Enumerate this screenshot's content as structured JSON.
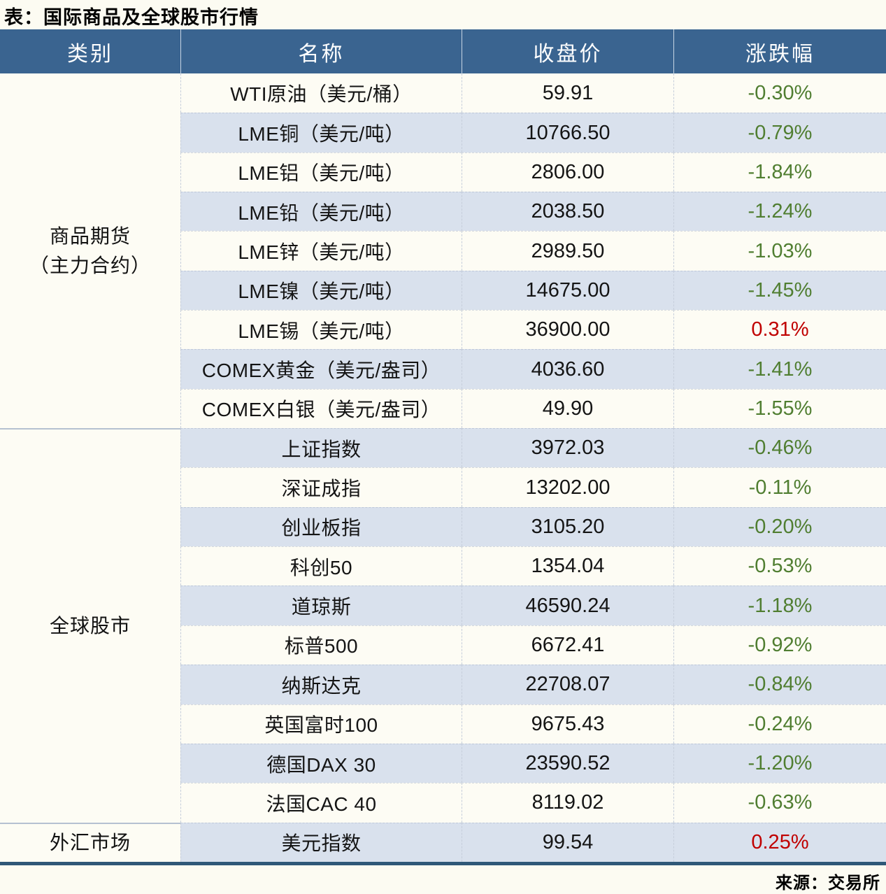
{
  "page": {
    "title": "表：国际商品及全球股市行情",
    "source": "来源：交易所"
  },
  "colors": {
    "header_bg": "#3A6490",
    "stripe": "#D9E1ED",
    "row_white": "#FDFCF4",
    "up_red": "#C00000",
    "down_green": "#507E31",
    "bottom_border": "#2F5878"
  },
  "table": {
    "headers": [
      "类别",
      "名称",
      "收盘价",
      "涨跌幅"
    ],
    "groups": [
      {
        "category_lines": [
          "商品期货",
          "（主力合约）"
        ],
        "rows": [
          {
            "name": "WTI原油（美元/桶）",
            "close": "59.91",
            "change": "-0.30%",
            "direction": "down"
          },
          {
            "name": "LME铜（美元/吨）",
            "close": "10766.50",
            "change": "-0.79%",
            "direction": "down"
          },
          {
            "name": "LME铝（美元/吨）",
            "close": "2806.00",
            "change": "-1.84%",
            "direction": "down"
          },
          {
            "name": "LME铅（美元/吨）",
            "close": "2038.50",
            "change": "-1.24%",
            "direction": "down"
          },
          {
            "name": "LME锌（美元/吨）",
            "close": "2989.50",
            "change": "-1.03%",
            "direction": "down"
          },
          {
            "name": "LME镍（美元/吨）",
            "close": "14675.00",
            "change": "-1.45%",
            "direction": "down"
          },
          {
            "name": "LME锡（美元/吨）",
            "close": "36900.00",
            "change": "0.31%",
            "direction": "up"
          },
          {
            "name": "COMEX黄金（美元/盎司）",
            "close": "4036.60",
            "change": "-1.41%",
            "direction": "down"
          },
          {
            "name": "COMEX白银（美元/盎司）",
            "close": "49.90",
            "change": "-1.55%",
            "direction": "down"
          }
        ]
      },
      {
        "category_lines": [
          "全球股市"
        ],
        "rows": [
          {
            "name": "上证指数",
            "close": "3972.03",
            "change": "-0.46%",
            "direction": "down"
          },
          {
            "name": "深证成指",
            "close": "13202.00",
            "change": "-0.11%",
            "direction": "down"
          },
          {
            "name": "创业板指",
            "close": "3105.20",
            "change": "-0.20%",
            "direction": "down"
          },
          {
            "name": "科创50",
            "close": "1354.04",
            "change": "-0.53%",
            "direction": "down"
          },
          {
            "name": "道琼斯",
            "close": "46590.24",
            "change": "-1.18%",
            "direction": "down"
          },
          {
            "name": "标普500",
            "close": "6672.41",
            "change": "-0.92%",
            "direction": "down"
          },
          {
            "name": "纳斯达克",
            "close": "22708.07",
            "change": "-0.84%",
            "direction": "down"
          },
          {
            "name": "英国富时100",
            "close": "9675.43",
            "change": "-0.24%",
            "direction": "down"
          },
          {
            "name": "德国DAX 30",
            "close": "23590.52",
            "change": "-1.20%",
            "direction": "down"
          },
          {
            "name": "法国CAC 40",
            "close": "8119.02",
            "change": "-0.63%",
            "direction": "down"
          }
        ]
      },
      {
        "category_lines": [
          "外汇市场"
        ],
        "rows": [
          {
            "name": "美元指数",
            "close": "99.54",
            "change": "0.25%",
            "direction": "up"
          }
        ]
      }
    ]
  }
}
